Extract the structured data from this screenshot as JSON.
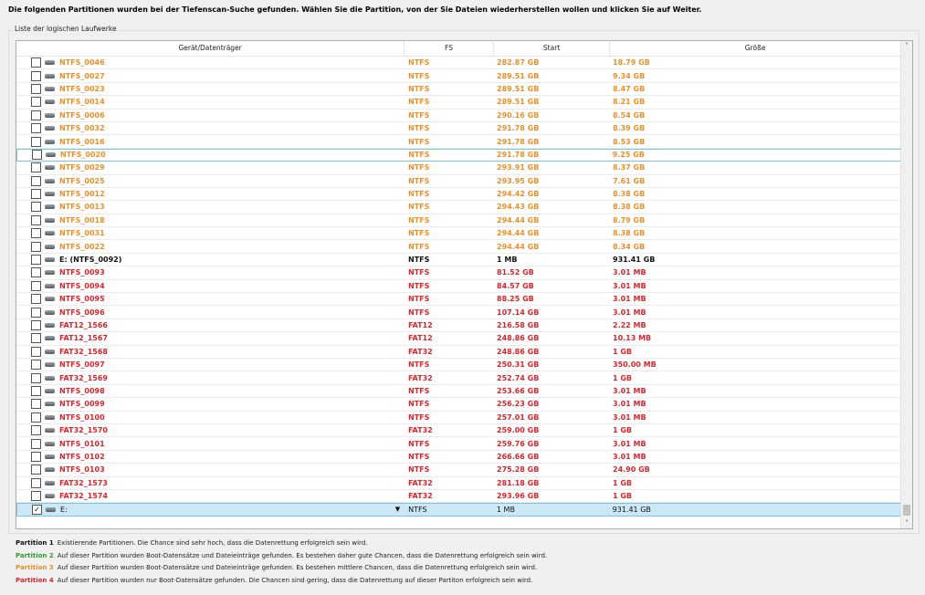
{
  "title": "Die folgenden Partitionen wurden bei der Tiefenscan-Suche gefunden. Wählen Sie die Partition, von der Sie Dateien wiederherstellen wollen und klicken Sie auf Weiter.",
  "group_label": "Liste der logischen Laufwerke",
  "columns": [
    "Gerät/Datenträger",
    "FS",
    "Start",
    "Größe"
  ],
  "colors": {
    "orange": "#e8912b",
    "red": "#d9262c",
    "green": "#2a9d2a",
    "black": "#111111"
  },
  "rows": [
    [
      "NTFS_0046",
      "NTFS",
      "282.87 GB",
      "18.79 GB",
      "o"
    ],
    [
      "NTFS_0027",
      "NTFS",
      "289.51 GB",
      "9.34 GB",
      "o"
    ],
    [
      "NTFS_0023",
      "NTFS",
      "289.51 GB",
      "8.47 GB",
      "o"
    ],
    [
      "NTFS_0014",
      "NTFS",
      "289.51 GB",
      "8.21 GB",
      "o"
    ],
    [
      "NTFS_0006",
      "NTFS",
      "290.16 GB",
      "8.54 GB",
      "o"
    ],
    [
      "NTFS_0032",
      "NTFS",
      "291.78 GB",
      "8.39 GB",
      "o"
    ],
    [
      "NTFS_0016",
      "NTFS",
      "291.78 GB",
      "8.53 GB",
      "o"
    ],
    [
      "NTFS_0020",
      "NTFS",
      "291.78 GB",
      "9.25 GB",
      "o",
      "hover"
    ],
    [
      "NTFS_0029",
      "NTFS",
      "293.91 GB",
      "8.37 GB",
      "o"
    ],
    [
      "NTFS_0025",
      "NTFS",
      "293.95 GB",
      "7.61 GB",
      "o"
    ],
    [
      "NTFS_0012",
      "NTFS",
      "294.42 GB",
      "8.38 GB",
      "o"
    ],
    [
      "NTFS_0013",
      "NTFS",
      "294.43 GB",
      "8.38 GB",
      "o"
    ],
    [
      "NTFS_0018",
      "NTFS",
      "294.44 GB",
      "8.79 GB",
      "o"
    ],
    [
      "NTFS_0031",
      "NTFS",
      "294.44 GB",
      "8.38 GB",
      "o"
    ],
    [
      "NTFS_0022",
      "NTFS",
      "294.44 GB",
      "8.34 GB",
      "o"
    ],
    [
      "E: (NTFS_0092)",
      "NTFS",
      "1 MB",
      "931.41 GB",
      "k"
    ],
    [
      "NTFS_0093",
      "NTFS",
      "81.52 GB",
      "3.01 MB",
      "r"
    ],
    [
      "NTFS_0094",
      "NTFS",
      "84.57 GB",
      "3.01 MB",
      "r"
    ],
    [
      "NTFS_0095",
      "NTFS",
      "88.25 GB",
      "3.01 MB",
      "r"
    ],
    [
      "NTFS_0096",
      "NTFS",
      "107.14 GB",
      "3.01 MB",
      "r"
    ],
    [
      "FAT12_1566",
      "FAT12",
      "216.58 GB",
      "2.22 MB",
      "r"
    ],
    [
      "FAT12_1567",
      "FAT12",
      "248.86 GB",
      "10.13 MB",
      "r"
    ],
    [
      "FAT32_1568",
      "FAT32",
      "248.86 GB",
      "1 GB",
      "r"
    ],
    [
      "NTFS_0097",
      "NTFS",
      "250.31 GB",
      "350.00 MB",
      "r"
    ],
    [
      "FAT32_1569",
      "FAT32",
      "252.74 GB",
      "1 GB",
      "r"
    ],
    [
      "NTFS_0098",
      "NTFS",
      "253.66 GB",
      "3.01 MB",
      "r"
    ],
    [
      "NTFS_0099",
      "NTFS",
      "256.23 GB",
      "3.01 MB",
      "r"
    ],
    [
      "NTFS_0100",
      "NTFS",
      "257.01 GB",
      "3.01 MB",
      "r"
    ],
    [
      "FAT32_1570",
      "FAT32",
      "259.00 GB",
      "1 GB",
      "r"
    ],
    [
      "NTFS_0101",
      "NTFS",
      "259.76 GB",
      "3.01 MB",
      "r"
    ],
    [
      "NTFS_0102",
      "NTFS",
      "266.66 GB",
      "3.01 MB",
      "r"
    ],
    [
      "NTFS_0103",
      "NTFS",
      "275.28 GB",
      "24.90 GB",
      "r"
    ],
    [
      "FAT32_1573",
      "FAT32",
      "281.18 GB",
      "1 GB",
      "r"
    ],
    [
      "FAT32_1574",
      "FAT32",
      "293.96 GB",
      "1 GB",
      "r"
    ],
    [
      "E:",
      "NTFS",
      "1 MB",
      "931.41 GB",
      "k",
      "selected"
    ]
  ],
  "legend": [
    {
      "label": "Partition 1",
      "text": "Existierende Partitionen. Die Chance sind sehr hoch, dass die Datenrettung erfolgreich sein wird.",
      "color": "#111111"
    },
    {
      "label": "Partition 2",
      "text": "Auf dieser Partition wurden Boot-Datensätze und Dateieinträge gefunden. Es bestehen daher gute Chancen, dass die Datenrettung erfolgreich sein wird.",
      "color": "#2a9d2a"
    },
    {
      "label": "Partition 3",
      "text": "Auf dieser Partition wurden Boot-Datensätze und Dateieinträge gefunden. Es bestehen mittlere Chancen, dass die Datenrettung erfolgreich sein wird.",
      "color": "#e8912b"
    },
    {
      "label": "Partition 4",
      "text": "Auf dieser Partition wurden nur Boot-Datensätze gefunden. Die Chancen sind gering, dass die Datenrettung auf dieser Partiton erfolgreich sein wird.",
      "color": "#d9262c"
    }
  ]
}
